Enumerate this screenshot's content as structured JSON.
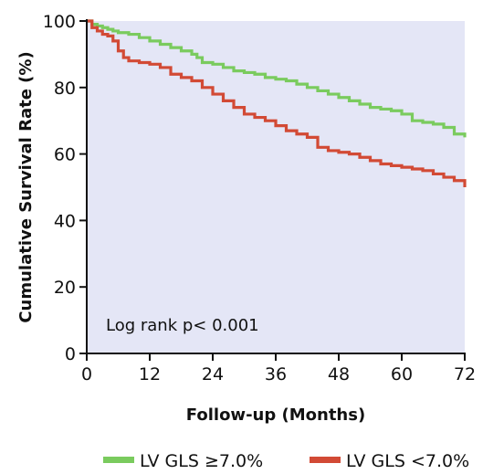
{
  "chart_data": {
    "type": "line",
    "title": "",
    "xlabel": "Follow-up (Months)",
    "ylabel": "Cumulative Survival Rate (%)",
    "xlim": [
      0,
      72
    ],
    "ylim": [
      0,
      100
    ],
    "x_ticks": [
      "0",
      "12",
      "24",
      "36",
      "48",
      "60",
      "72"
    ],
    "y_ticks": [
      "0",
      "20",
      "40",
      "60",
      "80",
      "100"
    ],
    "annotation": "Log rank p< 0.001",
    "plot_background": "#e4e6f6",
    "legend_position": "bottom",
    "series": [
      {
        "name": "LV GLS ≥7.0%",
        "color": "#7acb5e",
        "x": [
          0,
          1,
          2,
          3,
          4,
          5,
          6,
          8,
          10,
          12,
          14,
          16,
          18,
          20,
          21,
          22,
          24,
          26,
          28,
          30,
          32,
          34,
          36,
          38,
          40,
          42,
          44,
          46,
          48,
          50,
          52,
          54,
          56,
          58,
          60,
          62,
          64,
          66,
          68,
          70,
          72
        ],
        "y": [
          100,
          99,
          98.5,
          98,
          97.5,
          97,
          96.5,
          96,
          95,
          94,
          93,
          92,
          91,
          90,
          89,
          87.5,
          87,
          86,
          85,
          84.5,
          84,
          83,
          82.5,
          82,
          81,
          80,
          79,
          78,
          77,
          76,
          75,
          74,
          73.5,
          73,
          72,
          70,
          69.5,
          69,
          68,
          66,
          65
        ]
      },
      {
        "name": "LV GLS <7.0%",
        "color": "#d24a35",
        "x": [
          0,
          1,
          2,
          3,
          4,
          5,
          6,
          7,
          8,
          10,
          12,
          14,
          16,
          18,
          20,
          22,
          24,
          26,
          28,
          30,
          32,
          34,
          36,
          38,
          40,
          42,
          44,
          46,
          48,
          50,
          52,
          54,
          56,
          58,
          60,
          62,
          64,
          66,
          68,
          70,
          72
        ],
        "y": [
          100,
          98,
          97,
          96,
          95.5,
          94,
          91,
          89,
          88,
          87.5,
          87,
          86,
          84,
          83,
          82,
          80,
          78,
          76,
          74,
          72,
          71,
          70,
          68.5,
          67,
          66,
          65,
          62,
          61,
          60.5,
          60,
          59,
          58,
          57,
          56.5,
          56,
          55.5,
          55,
          54,
          53,
          52,
          50
        ]
      }
    ]
  }
}
